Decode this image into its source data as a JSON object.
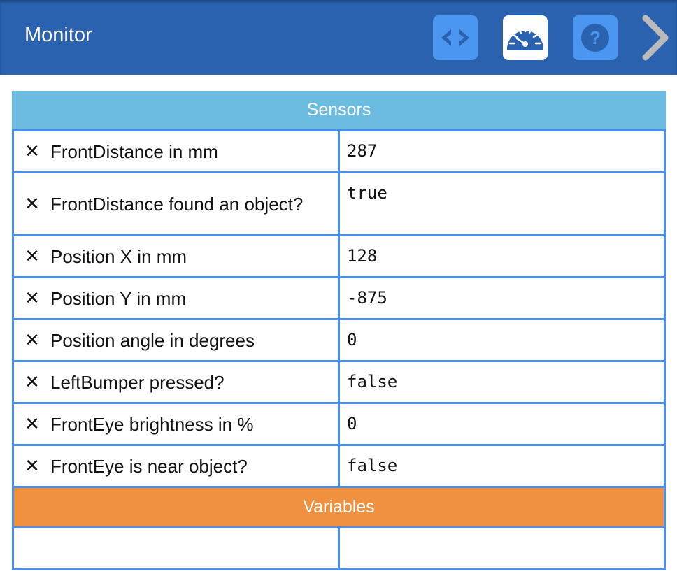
{
  "header": {
    "title": "Monitor",
    "buttons": [
      {
        "icon": "code-icon"
      },
      {
        "icon": "gauge-icon",
        "active": true
      },
      {
        "icon": "help-icon"
      }
    ],
    "next_icon": "chevron-right-icon"
  },
  "colors": {
    "header": "#2a62b0",
    "button": "#4a96f0",
    "sensors": "#6cbce2",
    "variables": "#ef913e",
    "border": "#4a8ef0"
  },
  "sensors": {
    "title": "Sensors",
    "rows": [
      {
        "label": "FrontDistance in mm",
        "value": "287"
      },
      {
        "label": "FrontDistance found an object?",
        "value": "true"
      },
      {
        "label": "Position X in mm",
        "value": "128"
      },
      {
        "label": "Position Y in mm",
        "value": "-875"
      },
      {
        "label": "Position angle in degrees",
        "value": "0"
      },
      {
        "label": "LeftBumper pressed?",
        "value": "false"
      },
      {
        "label": "FrontEye brightness in %",
        "value": "0"
      },
      {
        "label": "FrontEye is near object?",
        "value": "false"
      }
    ]
  },
  "variables": {
    "title": "Variables",
    "rows": [
      {
        "label": "",
        "value": ""
      }
    ]
  }
}
